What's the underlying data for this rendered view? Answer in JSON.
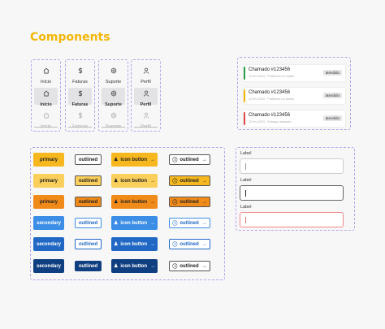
{
  "page": {
    "title": "Components"
  },
  "nav_groups": [
    {
      "label": "Início",
      "icon": "home-icon"
    },
    {
      "label": "Faturas",
      "icon": "dollar-icon"
    },
    {
      "label": "Suporte",
      "icon": "gear-icon"
    },
    {
      "label": "Perfil",
      "icon": "user-icon"
    }
  ],
  "tickets": [
    {
      "title": "Chamado #123456",
      "subtitle": "12 fev 2023 · Problema no cartão",
      "status": "atendido",
      "color": "#2e9b45"
    },
    {
      "title": "Chamado #123456",
      "subtitle": "12 fev 2023 · Problema no boleto",
      "status": "atendido",
      "color": "#f2b705"
    },
    {
      "title": "Chamado #123456",
      "subtitle": "12 fev 2023 · Entrega atrasada",
      "status": "atendido",
      "color": "#e04848"
    }
  ],
  "buttons": {
    "rows": [
      {
        "filled": "primary",
        "outlined": "outlined",
        "icon_button": "icon button",
        "icon_outlined": "outlined"
      },
      {
        "filled": "primary",
        "outlined": "outlined",
        "icon_button": "icon button",
        "icon_outlined": "outlined"
      },
      {
        "filled": "primary",
        "outlined": "outlined",
        "icon_button": "icon button",
        "icon_outlined": "outlined"
      },
      {
        "filled": "secondary",
        "outlined": "outlined",
        "icon_button": "icon button",
        "icon_outlined": "outlined"
      },
      {
        "filled": "secondary",
        "outlined": "outlined",
        "icon_button": "icon button",
        "icon_outlined": "outlined"
      },
      {
        "filled": "secondary",
        "outlined": "outlined",
        "icon_button": "icon button",
        "icon_outlined": "outlined"
      }
    ]
  },
  "form": {
    "fields": [
      {
        "label": "Label",
        "state": "default"
      },
      {
        "label": "Label",
        "state": "focused"
      },
      {
        "label": "Label",
        "state": "error"
      }
    ]
  },
  "colors": {
    "accent": "#f2b705",
    "primary_yellow": "#f6b81e",
    "primary_light": "#fbcf5b",
    "primary_orange": "#f08a18",
    "secondary_blue": "#3b8de6",
    "secondary_mid": "#2068c4",
    "secondary_dark": "#0f3f80"
  }
}
